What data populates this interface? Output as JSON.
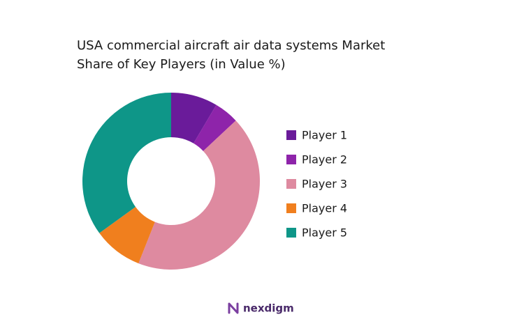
{
  "chart_data": {
    "type": "donut",
    "title": "USA commercial aircraft air data systems Market Share of Key Players (in Value %)",
    "categories": [
      "Player 1",
      "Player 2",
      "Player 3",
      "Player 4",
      "Player 5"
    ],
    "values": [
      8.5,
      4.5,
      43,
      9,
      35
    ],
    "colors": [
      "#6a1b9a",
      "#8e24aa",
      "#de8aa0",
      "#f07f1e",
      "#0e9688"
    ],
    "legend": "right"
  },
  "logo_text": "nexdigm"
}
